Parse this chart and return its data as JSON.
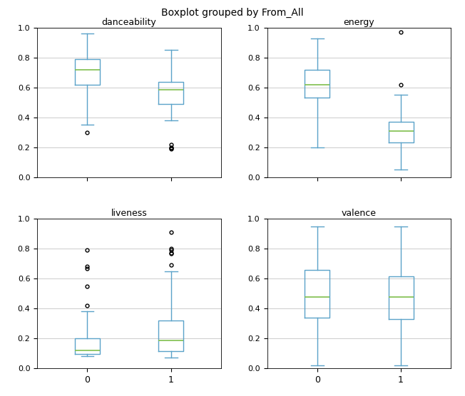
{
  "title": "Boxplot grouped by From_All",
  "subplots": [
    {
      "title": "danceability",
      "group0": {
        "whislo": 0.35,
        "q1": 0.62,
        "med": 0.72,
        "q3": 0.79,
        "whishi": 0.96,
        "fliers": [
          0.3
        ]
      },
      "group1": {
        "whislo": 0.38,
        "q1": 0.49,
        "med": 0.585,
        "q3": 0.635,
        "whishi": 0.85,
        "fliers": [
          0.195,
          0.19,
          0.2,
          0.22
        ]
      }
    },
    {
      "title": "energy",
      "group0": {
        "whislo": 0.2,
        "q1": 0.53,
        "med": 0.62,
        "q3": 0.72,
        "whishi": 0.93,
        "fliers": []
      },
      "group1": {
        "whislo": 0.05,
        "q1": 0.23,
        "med": 0.31,
        "q3": 0.37,
        "whishi": 0.55,
        "fliers": [
          0.97,
          0.62
        ]
      }
    },
    {
      "title": "liveness",
      "group0": {
        "whislo": 0.08,
        "q1": 0.095,
        "med": 0.12,
        "q3": 0.2,
        "whishi": 0.38,
        "fliers": [
          0.79,
          0.68,
          0.67,
          0.55,
          0.42
        ]
      },
      "group1": {
        "whislo": 0.07,
        "q1": 0.115,
        "med": 0.185,
        "q3": 0.32,
        "whishi": 0.65,
        "fliers": [
          0.91,
          0.8,
          0.79,
          0.775,
          0.77,
          0.69
        ]
      }
    },
    {
      "title": "valence",
      "group0": {
        "whislo": 0.02,
        "q1": 0.34,
        "med": 0.475,
        "q3": 0.66,
        "whishi": 0.95,
        "fliers": []
      },
      "group1": {
        "whislo": 0.02,
        "q1": 0.33,
        "med": 0.475,
        "q3": 0.615,
        "whishi": 0.95,
        "fliers": []
      }
    }
  ],
  "box_color": "#5ba3c9",
  "median_color": "#7fbf4d",
  "flier_color": "black",
  "grid_color": "#cccccc",
  "background_color": "#ffffff",
  "ylim": [
    0.0,
    1.0
  ],
  "yticks": [
    0.0,
    0.2,
    0.4,
    0.6,
    0.8,
    1.0
  ],
  "xtick_labels": [
    "0",
    "1"
  ],
  "show_xticks_rows": [
    1
  ],
  "figsize": [
    6.52,
    5.56
  ],
  "dpi": 100
}
